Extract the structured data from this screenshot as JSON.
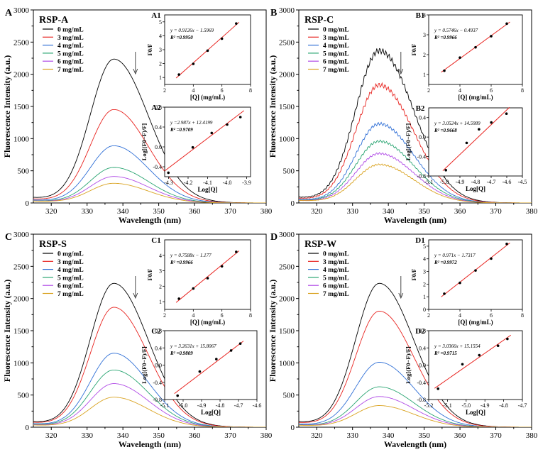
{
  "colors": {
    "0 mg/mL": "#000000",
    "3 mg/mL": "#e8231f",
    "4 mg/mL": "#2f6fd6",
    "5 mg/mL": "#2aa572",
    "6 mg/mL": "#b04ae6",
    "7 mg/mL": "#d9a21f",
    "fit": "#e8231f"
  },
  "chart_data": [
    {
      "type": "line",
      "letter": "A",
      "title": "RSP-A",
      "xlabel": "Wavelength (nm)",
      "ylabel": "Fluorescence Intensity (a.u.)",
      "xlim": [
        315,
        380
      ],
      "ylim": [
        0,
        3000
      ],
      "xticks": [
        "320",
        "330",
        "340",
        "350",
        "360",
        "370",
        "380"
      ],
      "yticks": [
        "0",
        "500",
        "1000",
        "1500",
        "2000",
        "2500",
        "3000"
      ],
      "peak_nm": 337.5,
      "baseline_320": 60,
      "noisy": false,
      "series": [
        {
          "name": "0 mg/mL",
          "peak": 2220
        },
        {
          "name": "3 mg/mL",
          "peak": 1440
        },
        {
          "name": "4 mg/mL",
          "peak": 880
        },
        {
          "name": "5 mg/mL",
          "peak": 545
        },
        {
          "name": "6 mg/mL",
          "peak": 405
        },
        {
          "name": "7 mg/mL",
          "peak": 300
        }
      ],
      "insets": [
        {
          "label": "A1",
          "kind": "stern",
          "xlabel": "[Q] (mg/mL)",
          "ylabel": "F0/F",
          "xlim": [
            2,
            8
          ],
          "ylim": [
            0.5,
            5.5
          ],
          "xticks": [
            "2",
            "4",
            "6",
            "8"
          ],
          "yticks": [
            "1",
            "2",
            "3",
            "4",
            "5"
          ],
          "x": [
            3,
            4,
            5,
            6,
            7
          ],
          "y": [
            1.21,
            1.98,
            2.93,
            3.79,
            4.88
          ],
          "eq": "y = 0.9126x − 1.5969",
          "r2": "R² =0.9950",
          "slope": 0.9126,
          "intercept": -1.5969
        },
        {
          "label": "A2",
          "kind": "log",
          "xlabel": "Log[Q]",
          "ylabel": "Log[(F0−F)/F]",
          "xlim": [
            -4.32,
            -3.88
          ],
          "ylim": [
            -0.6,
            0.8
          ],
          "xticks": [
            "-4.3",
            "-4.2",
            "-4.1",
            "-4.0",
            "-3.9"
          ],
          "yticks": [
            "-0.4",
            "0.0",
            "0.4",
            "0.8"
          ],
          "x": [
            -4.301,
            -4.176,
            -4.079,
            -4.0,
            -3.932
          ],
          "y": [
            -0.52,
            -0.01,
            0.28,
            0.45,
            0.6
          ],
          "eq": "y =2.987x + 12.4199",
          "r2": "R² =0.9709",
          "slope": 2.987,
          "intercept": 12.4199
        }
      ]
    },
    {
      "type": "line",
      "letter": "B",
      "title": "RSP-C",
      "xlabel": "Wavelength (nm)",
      "ylabel": "Fluorescence Intensity (a.u.)",
      "xlim": [
        315,
        380
      ],
      "ylim": [
        0,
        3000
      ],
      "xticks": [
        "320",
        "330",
        "340",
        "350",
        "360",
        "370",
        "380"
      ],
      "yticks": [
        "0",
        "500",
        "1000",
        "1500",
        "2000",
        "2500",
        "3000"
      ],
      "peak_nm": 337.5,
      "baseline_320": 60,
      "noisy": true,
      "series": [
        {
          "name": "0 mg/mL",
          "peak": 2350
        },
        {
          "name": "3 mg/mL",
          "peak": 1820
        },
        {
          "name": "4 mg/mL",
          "peak": 1220
        },
        {
          "name": "5 mg/mL",
          "peak": 950
        },
        {
          "name": "6 mg/mL",
          "peak": 760
        },
        {
          "name": "7 mg/mL",
          "peak": 590
        }
      ],
      "insets": [
        {
          "label": "B1",
          "kind": "stern",
          "xlabel": "[Q] (mg/mL)",
          "ylabel": "F0/F",
          "xlim": [
            2,
            8
          ],
          "ylim": [
            0.5,
            4
          ],
          "xticks": [
            "2",
            "4",
            "6",
            "8"
          ],
          "yticks": [
            "1",
            "2",
            "3",
            "4"
          ],
          "x": [
            3,
            4,
            5,
            6,
            7
          ],
          "y": [
            1.19,
            1.85,
            2.37,
            2.93,
            3.56
          ],
          "eq": "y = 0.5746x − 0.4937",
          "r2": "R² =0.9966",
          "slope": 0.5746,
          "intercept": -0.4937
        },
        {
          "label": "B2",
          "kind": "log",
          "xlabel": "Log[Q]",
          "ylabel": "Log[(F0−F)/F]",
          "xlim": [
            -5.1,
            -4.5
          ],
          "ylim": [
            -0.8,
            0.6
          ],
          "xticks": [
            "-5.1",
            "-5.0",
            "-4.9",
            "-4.8",
            "-4.7",
            "-4.6",
            "-4.5"
          ],
          "yticks": [
            "-0.8",
            "-0.4",
            "0.0",
            "0.4"
          ],
          "x": [
            -4.99,
            -4.857,
            -4.778,
            -4.699,
            -4.602
          ],
          "y": [
            -0.68,
            -0.12,
            0.16,
            0.3,
            0.48
          ],
          "eq": "y = 3.0524x + 14.5989",
          "r2": "R² =0.9668",
          "slope": 3.0524,
          "intercept": 14.5989
        }
      ]
    },
    {
      "type": "line",
      "letter": "C",
      "title": "RSP-S",
      "xlabel": "Wavelength (nm)",
      "ylabel": "Fluorescence Intensity (a.u.)",
      "xlim": [
        315,
        380
      ],
      "ylim": [
        0,
        3000
      ],
      "xticks": [
        "320",
        "330",
        "340",
        "350",
        "360",
        "370",
        "380"
      ],
      "yticks": [
        "0",
        "500",
        "1000",
        "1500",
        "2000",
        "2500",
        "3000"
      ],
      "peak_nm": 337.5,
      "baseline_320": 60,
      "noisy": false,
      "series": [
        {
          "name": "0 mg/mL",
          "peak": 2220
        },
        {
          "name": "3 mg/mL",
          "peak": 1850
        },
        {
          "name": "4 mg/mL",
          "peak": 1140
        },
        {
          "name": "5 mg/mL",
          "peak": 880
        },
        {
          "name": "6 mg/mL",
          "peak": 670
        },
        {
          "name": "7 mg/mL",
          "peak": 460
        }
      ],
      "insets": [
        {
          "label": "C1",
          "kind": "stern",
          "xlabel": "[Q] (mg/mL)",
          "ylabel": "F0/F",
          "xlim": [
            2,
            8
          ],
          "ylim": [
            0.5,
            5
          ],
          "xticks": [
            "2",
            "4",
            "6",
            "8"
          ],
          "yticks": [
            "1",
            "2",
            "3",
            "4"
          ],
          "x": [
            3,
            4,
            5,
            6,
            7
          ],
          "y": [
            1.19,
            1.85,
            2.52,
            3.29,
            4.22
          ],
          "eq": "y = 0.7588x − 1.177",
          "r2": "R² =0.9966",
          "slope": 0.7588,
          "intercept": -1.177
        },
        {
          "label": "C2",
          "kind": "log",
          "xlabel": "Log[Q]",
          "ylabel": "Log[(F0−F)/F]",
          "xlim": [
            -5.1,
            -4.6
          ],
          "ylim": [
            -0.8,
            0.8
          ],
          "xticks": [
            "-5.1",
            "-5.0",
            "-4.9",
            "-4.8",
            "-4.7",
            "-4.6"
          ],
          "yticks": [
            "-0.8",
            "-0.4",
            "0.0",
            "0.4",
            "0.8"
          ],
          "x": [
            -5.03,
            -4.91,
            -4.82,
            -4.74,
            -4.69
          ],
          "y": [
            -0.71,
            -0.15,
            0.14,
            0.34,
            0.5
          ],
          "eq": "y = 3.2631x + 15.8067",
          "r2": "R² =0.9809",
          "slope": 3.2631,
          "intercept": 15.8067
        }
      ]
    },
    {
      "type": "line",
      "letter": "D",
      "title": "RSP-W",
      "xlabel": "Wavelength (nm)",
      "ylabel": "Fluorescence Intensity (a.u.)",
      "xlim": [
        315,
        380
      ],
      "ylim": [
        0,
        3000
      ],
      "xticks": [
        "320",
        "330",
        "340",
        "350",
        "360",
        "370",
        "380"
      ],
      "yticks": [
        "0",
        "500",
        "1000",
        "1500",
        "2000",
        "2500",
        "3000"
      ],
      "peak_nm": 337.5,
      "baseline_320": 60,
      "noisy": false,
      "series": [
        {
          "name": "0 mg/mL",
          "peak": 2220
        },
        {
          "name": "3 mg/mL",
          "peak": 1790
        },
        {
          "name": "4 mg/mL",
          "peak": 1000
        },
        {
          "name": "5 mg/mL",
          "peak": 620
        },
        {
          "name": "6 mg/mL",
          "peak": 470
        },
        {
          "name": "7 mg/mL",
          "peak": 330
        }
      ],
      "insets": [
        {
          "label": "D1",
          "kind": "stern",
          "xlabel": "[Q] (mg/mL)",
          "ylabel": "F0/F",
          "xlim": [
            2,
            8
          ],
          "ylim": [
            0,
            5.5
          ],
          "xticks": [
            "2",
            "4",
            "6",
            "8"
          ],
          "yticks": [
            "0",
            "1",
            "2",
            "3",
            "4",
            "5"
          ],
          "x": [
            3,
            4,
            5,
            6,
            7
          ],
          "y": [
            1.24,
            2.1,
            3.08,
            4.02,
            5.18
          ],
          "eq": "y = 0.971x − 1.7317",
          "r2": "R² =0.9972",
          "slope": 0.971,
          "intercept": -1.7317
        },
        {
          "label": "D2",
          "kind": "log",
          "xlabel": "Log[Q]",
          "ylabel": "Log[(F0−F)/F]",
          "xlim": [
            -5.2,
            -4.7
          ],
          "ylim": [
            -0.8,
            0.8
          ],
          "xticks": [
            "-5.2",
            "-5.1",
            "-5.0",
            "-4.9",
            "-4.8",
            "-4.7"
          ],
          "yticks": [
            "-0.8",
            "-0.4",
            "0.0",
            "0.4",
            "0.8"
          ],
          "x": [
            -5.15,
            -5.02,
            -4.93,
            -4.83,
            -4.78
          ],
          "y": [
            -0.55,
            0.02,
            0.23,
            0.45,
            0.61
          ],
          "eq": "y = 3.0366x + 15.1554",
          "r2": "R² =0.9715",
          "slope": 3.0366,
          "intercept": 15.1554
        }
      ]
    }
  ]
}
